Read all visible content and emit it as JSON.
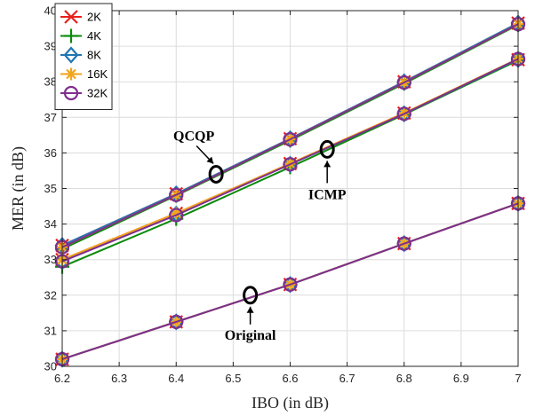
{
  "chart_data": {
    "type": "line",
    "xlabel": "IBO (in dB)",
    "ylabel": "MER (in dB)",
    "xlim": [
      6.2,
      7.0
    ],
    "ylim": [
      30,
      40
    ],
    "x_ticks": [
      "6.2",
      "6.3",
      "6.4",
      "6.5",
      "6.6",
      "6.7",
      "6.8",
      "6.9",
      "7"
    ],
    "y_ticks": [
      "30",
      "31",
      "32",
      "33",
      "34",
      "35",
      "36",
      "37",
      "38",
      "39",
      "40"
    ],
    "grid": true,
    "legend_position": "top-left",
    "x": [
      6.2,
      6.4,
      6.6,
      6.8,
      7.0
    ],
    "series": [
      {
        "name": "2K",
        "color": "#e8211c",
        "marker": "x",
        "group": "QCQP",
        "values": [
          33.4,
          34.85,
          36.4,
          38.0,
          39.65
        ]
      },
      {
        "name": "4K",
        "color": "#0a8a0a",
        "marker": "plus",
        "group": "QCQP",
        "values": [
          33.3,
          34.8,
          36.35,
          37.95,
          39.6
        ]
      },
      {
        "name": "8K",
        "color": "#1f77b4",
        "marker": "diamond",
        "group": "QCQP",
        "values": [
          33.4,
          34.85,
          36.4,
          38.0,
          39.65
        ]
      },
      {
        "name": "16K",
        "color": "#f2a51b",
        "marker": "asterisk",
        "group": "QCQP",
        "values": [
          33.35,
          34.82,
          36.38,
          37.98,
          39.62
        ]
      },
      {
        "name": "32K",
        "color": "#7e2f8e",
        "marker": "circle",
        "group": "QCQP",
        "values": [
          33.35,
          34.82,
          36.38,
          37.98,
          39.62
        ]
      },
      {
        "name": "2K",
        "color": "#e8211c",
        "marker": "x",
        "group": "ICMP",
        "values": [
          33.0,
          34.3,
          35.7,
          37.12,
          38.62
        ]
      },
      {
        "name": "4K",
        "color": "#0a8a0a",
        "marker": "plus",
        "group": "ICMP",
        "values": [
          32.8,
          34.15,
          35.6,
          37.08,
          38.6
        ]
      },
      {
        "name": "8K",
        "color": "#1f77b4",
        "marker": "diamond",
        "group": "ICMP",
        "values": [
          32.95,
          34.28,
          35.68,
          37.1,
          38.63
        ]
      },
      {
        "name": "16K",
        "color": "#f2a51b",
        "marker": "asterisk",
        "group": "ICMP",
        "values": [
          33.0,
          34.3,
          35.7,
          37.12,
          38.65
        ]
      },
      {
        "name": "32K",
        "color": "#7e2f8e",
        "marker": "circle",
        "group": "ICMP",
        "values": [
          32.95,
          34.25,
          35.68,
          37.1,
          38.64
        ]
      },
      {
        "name": "2K",
        "color": "#e8211c",
        "marker": "x",
        "group": "Original",
        "values": [
          30.2,
          31.25,
          32.3,
          33.45,
          34.58
        ]
      },
      {
        "name": "4K",
        "color": "#0a8a0a",
        "marker": "plus",
        "group": "Original",
        "values": [
          30.2,
          31.25,
          32.3,
          33.45,
          34.58
        ]
      },
      {
        "name": "8K",
        "color": "#1f77b4",
        "marker": "diamond",
        "group": "Original",
        "values": [
          30.2,
          31.25,
          32.3,
          33.45,
          34.58
        ]
      },
      {
        "name": "16K",
        "color": "#f2a51b",
        "marker": "asterisk",
        "group": "Original",
        "values": [
          30.2,
          31.25,
          32.3,
          33.45,
          34.58
        ]
      },
      {
        "name": "32K",
        "color": "#7e2f8e",
        "marker": "circle",
        "group": "Original",
        "values": [
          30.2,
          31.25,
          32.3,
          33.45,
          34.58
        ]
      }
    ],
    "legend": [
      {
        "label": "2K",
        "color": "#e8211c",
        "marker": "x"
      },
      {
        "label": "4K",
        "color": "#0a8a0a",
        "marker": "plus"
      },
      {
        "label": "8K",
        "color": "#1f77b4",
        "marker": "diamond"
      },
      {
        "label": "16K",
        "color": "#f2a51b",
        "marker": "asterisk"
      },
      {
        "label": "32K",
        "color": "#7e2f8e",
        "marker": "circle"
      }
    ],
    "annotations": [
      {
        "text": "QCQP",
        "ellipse_at": [
          6.47,
          35.4
        ],
        "arrow_dir": "down"
      },
      {
        "text": "ICMP",
        "ellipse_at": [
          6.665,
          36.1
        ],
        "arrow_dir": "up"
      },
      {
        "text": "Original",
        "ellipse_at": [
          6.53,
          32.0
        ],
        "arrow_dir": "up"
      }
    ]
  }
}
